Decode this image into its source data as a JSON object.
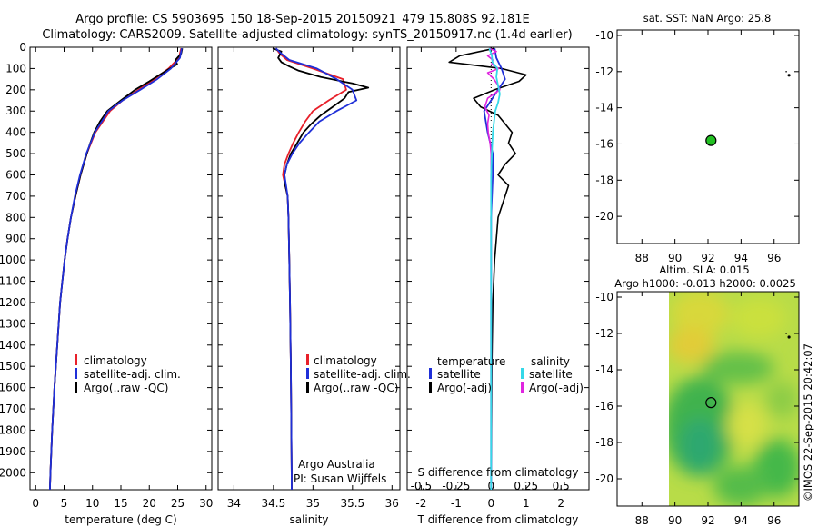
{
  "header": {
    "line1": "Argo profile: CS 5903695_150 18-Sep-2015 20150921_479 15.808S 92.181E",
    "line2": "Climatology: CARS2009. Satellite-adjusted climatology: synTS_20150917.nc (1.4d earlier)"
  },
  "side_label": "©IMOS 22-Sep-2015 20:42:07",
  "colors": {
    "climatology": "#e8202a",
    "satellite": "#1f2fd8",
    "argo": "#000000",
    "sal_satellite": "#34d8e8",
    "sal_argo": "#e025e0",
    "float": "#22c022"
  },
  "legends": {
    "temp": [
      "climatology",
      "satellite-adj. clim.",
      "Argo(..raw -QC)"
    ],
    "sal": [
      "climatology",
      "satellite-adj. clim.",
      "Argo(..raw -QC)"
    ],
    "diff": {
      "head_left": "temperature",
      "head_right": "salinity",
      "left": [
        "satellite",
        "Argo(-adj)"
      ],
      "right": [
        "satellite",
        "Argo(-adj)"
      ]
    }
  },
  "annotations": {
    "credit1": "Argo Australia",
    "credit2": "PI: Susan Wijffels",
    "s_diff_label": "S difference from climatology"
  },
  "maps": {
    "top_title": "sat. SST: NaN Argo: 25.8",
    "bottom_title1": "Altim. SLA: 0.015",
    "bottom_title2": "Argo h1000: -0.013 h2000: 0.0025"
  },
  "chart_data": [
    {
      "type": "line",
      "name": "temperature-profile",
      "xlabel": "temperature (deg C)",
      "xlim": [
        -1,
        31
      ],
      "ylim": [
        2080,
        0
      ],
      "y_ticks": [
        0,
        100,
        200,
        300,
        400,
        500,
        600,
        700,
        800,
        900,
        1000,
        1100,
        1200,
        1300,
        1400,
        1500,
        1600,
        1700,
        1800,
        1900,
        2000
      ],
      "x_ticks": [
        0,
        5,
        10,
        15,
        20,
        25,
        30
      ],
      "series": [
        {
          "name": "climatology",
          "depth": [
            5,
            50,
            100,
            150,
            200,
            250,
            300,
            400,
            500,
            600,
            700,
            800,
            900,
            1000,
            1200,
            1400,
            1600,
            1800,
            2000,
            2080
          ],
          "values": [
            25.6,
            25.2,
            23.4,
            20.9,
            18.1,
            15.3,
            13.1,
            10.5,
            9.0,
            7.9,
            7.0,
            6.2,
            5.6,
            5.1,
            4.3,
            3.8,
            3.3,
            2.9,
            2.6,
            2.5
          ]
        },
        {
          "name": "satellite-adj. clim.",
          "depth": [
            5,
            50,
            100,
            150,
            200,
            250,
            300,
            400,
            500,
            600,
            700,
            800,
            900,
            1000,
            1200,
            1400,
            1600,
            1800,
            2000,
            2080
          ],
          "values": [
            25.7,
            25.4,
            23.8,
            21.4,
            18.4,
            15.3,
            12.8,
            10.4,
            8.9,
            7.8,
            6.9,
            6.2,
            5.6,
            5.1,
            4.3,
            3.8,
            3.3,
            2.9,
            2.6,
            2.5
          ]
        },
        {
          "name": "Argo(..raw -QC)",
          "depth": [
            5,
            30,
            60,
            80,
            100,
            130,
            160,
            200,
            250,
            300,
            350,
            400,
            450,
            500,
            600,
            700,
            800,
            900,
            1000,
            1200,
            1400,
            1600,
            1800,
            2000,
            2080
          ],
          "values": [
            25.8,
            25.6,
            24.6,
            24.9,
            23.6,
            21.8,
            20.0,
            17.5,
            15.0,
            12.6,
            11.3,
            10.3,
            9.6,
            9.0,
            7.9,
            7.0,
            6.2,
            5.6,
            5.1,
            4.3,
            3.8,
            3.3,
            2.9,
            2.6,
            2.5
          ]
        }
      ]
    },
    {
      "type": "line",
      "name": "salinity-profile",
      "xlabel": "salinity",
      "xlim": [
        33.8,
        36.1
      ],
      "ylim": [
        2080,
        0
      ],
      "x_ticks": [
        34,
        34.5,
        35,
        35.5,
        36
      ],
      "series": [
        {
          "name": "climatology",
          "depth": [
            5,
            30,
            60,
            100,
            150,
            200,
            250,
            300,
            350,
            400,
            450,
            500,
            550,
            600,
            650,
            700,
            800,
            1000,
            1200,
            1500,
            2000,
            2080
          ],
          "values": [
            34.53,
            34.58,
            34.67,
            35.0,
            35.38,
            35.42,
            35.2,
            35.0,
            34.9,
            34.82,
            34.75,
            34.69,
            34.64,
            34.62,
            34.65,
            34.68,
            34.69,
            34.7,
            34.71,
            34.72,
            34.73,
            34.73
          ]
        },
        {
          "name": "satellite-adj. clim.",
          "depth": [
            5,
            30,
            60,
            100,
            150,
            200,
            250,
            300,
            350,
            400,
            450,
            500,
            550,
            600,
            650,
            700,
            800,
            1000,
            1200,
            1500,
            2000,
            2080
          ],
          "values": [
            34.53,
            34.6,
            34.7,
            35.05,
            35.3,
            35.5,
            35.55,
            35.3,
            35.08,
            34.95,
            34.83,
            34.74,
            34.67,
            34.64,
            34.66,
            34.68,
            34.69,
            34.7,
            34.71,
            34.72,
            34.73,
            34.73
          ]
        },
        {
          "name": "Argo(..raw -QC)",
          "depth": [
            5,
            20,
            50,
            70,
            90,
            110,
            140,
            170,
            190,
            210,
            240,
            280,
            320,
            360,
            400,
            450,
            500,
            550,
            600,
            650,
            700,
            800,
            1000,
            1200,
            1500,
            2000,
            2080
          ],
          "values": [
            34.49,
            34.6,
            34.56,
            34.6,
            34.7,
            34.82,
            35.1,
            35.5,
            35.7,
            35.45,
            35.4,
            35.25,
            35.1,
            34.98,
            34.88,
            34.8,
            34.72,
            34.67,
            34.64,
            34.65,
            34.68,
            34.69,
            34.7,
            34.71,
            34.72,
            34.73,
            34.73
          ]
        }
      ]
    },
    {
      "type": "line",
      "name": "difference-profile",
      "xlabel": "T difference from climatology",
      "xlim": [
        -2.4,
        2.8
      ],
      "ylim": [
        2080,
        0
      ],
      "x_ticks": [
        -2,
        -1,
        0,
        1,
        2
      ],
      "top_ticks": [
        -0.5,
        -0.25,
        0,
        0.25,
        0.5
      ],
      "series": [
        {
          "name": "temperature satellite",
          "depth": [
            5,
            50,
            100,
            150,
            200,
            300,
            400,
            500,
            600,
            800,
            1000,
            1500,
            2000,
            2080
          ],
          "values": [
            0.1,
            0.15,
            0.3,
            0.4,
            0.2,
            -0.2,
            -0.1,
            0.05,
            0.05,
            0.0,
            0.0,
            0.0,
            0.0,
            0.0
          ]
        },
        {
          "name": "temperature Argo(-adj)",
          "depth": [
            5,
            40,
            70,
            100,
            130,
            160,
            200,
            240,
            280,
            320,
            360,
            400,
            450,
            500,
            550,
            600,
            650,
            700,
            800,
            1000,
            1200,
            1500,
            1800,
            2000,
            2080
          ],
          "values": [
            0.1,
            -0.9,
            -1.2,
            0.3,
            1.0,
            0.8,
            0.1,
            -0.5,
            -0.3,
            0.2,
            0.4,
            0.6,
            0.5,
            0.7,
            0.4,
            0.2,
            0.5,
            0.4,
            0.2,
            0.1,
            0.05,
            0.02,
            0.01,
            0.0,
            0.0
          ]
        },
        {
          "name": "salinity satellite",
          "depth": [
            5,
            40,
            70,
            100,
            140,
            180,
            220,
            260,
            300,
            400,
            500,
            600,
            800,
            1000,
            1500,
            2000,
            2080
          ],
          "values": [
            -0.05,
            0.02,
            0.04,
            0.18,
            0.15,
            0.2,
            0.25,
            0.2,
            0.12,
            0.05,
            0.02,
            0.0,
            0.0,
            0.0,
            0.0,
            0.0,
            0.0
          ]
        },
        {
          "name": "salinity Argo(-adj)",
          "depth": [
            5,
            20,
            40,
            60,
            80,
            100,
            120,
            150,
            180,
            200,
            240,
            280,
            320,
            360,
            400,
            450,
            500,
            550,
            600,
            700,
            800,
            1000,
            1500,
            2000,
            2080
          ],
          "values": [
            -0.05,
            0.15,
            -0.1,
            0.05,
            0.02,
            0.22,
            -0.1,
            0.08,
            0.2,
            0.25,
            -0.1,
            -0.18,
            -0.06,
            -0.1,
            -0.08,
            -0.03,
            0.0,
            0.0,
            0.0,
            0.0,
            0.0,
            0.0,
            0.0,
            0.0,
            0.0
          ]
        }
      ]
    },
    {
      "type": "scatter",
      "name": "location-map-sst",
      "xlim": [
        86.5,
        97.5
      ],
      "ylim": [
        -21.5,
        -9.7
      ],
      "x_ticks": [
        88,
        90,
        92,
        94,
        96
      ],
      "y_ticks": [
        -10,
        -12,
        -14,
        -16,
        -18,
        -20
      ],
      "points": [
        {
          "lon": 92.181,
          "lat": -15.808,
          "label": "float"
        },
        {
          "lon": 96.9,
          "lat": -12.2,
          "label": "island"
        }
      ]
    },
    {
      "type": "heatmap",
      "name": "location-map-sla",
      "xlim": [
        86.5,
        97.5
      ],
      "ylim": [
        -21.5,
        -9.7
      ],
      "x_ticks": [
        88,
        90,
        92,
        94,
        96
      ],
      "y_ticks": [
        -10,
        -12,
        -14,
        -16,
        -18,
        -20
      ],
      "data_extent_lon": [
        89.9,
        97.5
      ],
      "points": [
        {
          "lon": 92.181,
          "lat": -15.808,
          "label": "float"
        },
        {
          "lon": 96.9,
          "lat": -12.2,
          "label": "island"
        }
      ]
    }
  ]
}
